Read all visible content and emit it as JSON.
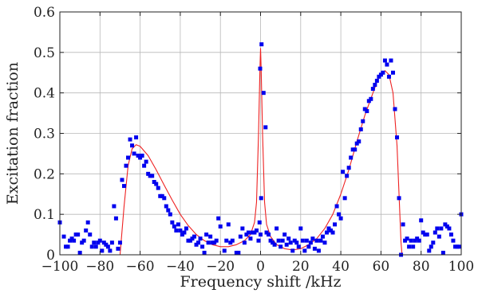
{
  "chart_data": {
    "type": "scatter",
    "xlabel": "Frequency shift /kHz",
    "ylabel": "Excitation fraction",
    "xlim": [
      -100,
      100
    ],
    "ylim": [
      0,
      0.6
    ],
    "xticks": [
      -100,
      -80,
      -60,
      -40,
      -20,
      0,
      20,
      40,
      60,
      80,
      100
    ],
    "yticks": [
      0,
      0.1,
      0.2,
      0.3,
      0.4,
      0.5,
      0.6
    ],
    "xtick_labels": [
      "−100",
      "−80",
      "−60",
      "−40",
      "−20",
      "0",
      "20",
      "40",
      "60",
      "80",
      "100"
    ],
    "ytick_labels": [
      "0",
      "0.1",
      "0.2",
      "0.3",
      "0.4",
      "0.5",
      "0.6"
    ],
    "grid": true,
    "series": [
      {
        "kind": "points",
        "color": "#0000ee",
        "marker": "square",
        "points": [
          [
            -100,
            0.08
          ],
          [
            -98,
            0.045
          ],
          [
            -97,
            0.02
          ],
          [
            -96,
            0.02
          ],
          [
            -95,
            0.035
          ],
          [
            -94,
            0.04
          ],
          [
            -93,
            0.035
          ],
          [
            -92,
            0.05
          ],
          [
            -91,
            0.05
          ],
          [
            -90,
            0.005
          ],
          [
            -89,
            0.03
          ],
          [
            -88,
            0.035
          ],
          [
            -87,
            0.06
          ],
          [
            -86,
            0.08
          ],
          [
            -85,
            0.05
          ],
          [
            -84,
            0.02
          ],
          [
            -83,
            0.03
          ],
          [
            -82,
            0.02
          ],
          [
            -81,
            0.03
          ],
          [
            -80,
            0.035
          ],
          [
            -79,
            0.01
          ],
          [
            -78,
            0.03
          ],
          [
            -77,
            0.025
          ],
          [
            -76,
            0.02
          ],
          [
            -75,
            0.01
          ],
          [
            -74,
            0.03
          ],
          [
            -73,
            0.12
          ],
          [
            -72,
            0.09
          ],
          [
            -71,
            0.015
          ],
          [
            -70,
            0.03
          ],
          [
            -69,
            0.185
          ],
          [
            -68,
            0.17
          ],
          [
            -67,
            0.22
          ],
          [
            -66,
            0.24
          ],
          [
            -65,
            0.285
          ],
          [
            -64,
            0.27
          ],
          [
            -63,
            0.25
          ],
          [
            -62,
            0.29
          ],
          [
            -61,
            0.245
          ],
          [
            -60,
            0.24
          ],
          [
            -59,
            0.245
          ],
          [
            -58,
            0.22
          ],
          [
            -57,
            0.23
          ],
          [
            -56,
            0.2
          ],
          [
            -55,
            0.195
          ],
          [
            -54,
            0.195
          ],
          [
            -53,
            0.18
          ],
          [
            -52,
            0.175
          ],
          [
            -51,
            0.165
          ],
          [
            -50,
            0.145
          ],
          [
            -49,
            0.145
          ],
          [
            -48,
            0.14
          ],
          [
            -47,
            0.12
          ],
          [
            -46,
            0.11
          ],
          [
            -45,
            0.1
          ],
          [
            -44,
            0.08
          ],
          [
            -43,
            0.07
          ],
          [
            -42,
            0.06
          ],
          [
            -41,
            0.075
          ],
          [
            -40,
            0.06
          ],
          [
            -39,
            0.05
          ],
          [
            -38,
            0.055
          ],
          [
            -37,
            0.065
          ],
          [
            -36,
            0.035
          ],
          [
            -35,
            0.035
          ],
          [
            -34,
            0.04
          ],
          [
            -33,
            0.045
          ],
          [
            -32,
            0.025
          ],
          [
            -31,
            0.03
          ],
          [
            -30,
            0.04
          ],
          [
            -29,
            0.02
          ],
          [
            -28,
            0.005
          ],
          [
            -27,
            0.05
          ],
          [
            -26,
            0.03
          ],
          [
            -25,
            0.045
          ],
          [
            -24,
            0.03
          ],
          [
            -23,
            0.03
          ],
          [
            -22,
            0.035
          ],
          [
            -21,
            0.09
          ],
          [
            -20,
            0.07
          ],
          [
            -18,
            0.01
          ],
          [
            -17,
            0.035
          ],
          [
            -16,
            0.075
          ],
          [
            -15,
            0.03
          ],
          [
            -14,
            0.035
          ],
          [
            -12,
            0.005
          ],
          [
            -11,
            0.005
          ],
          [
            -10,
            0.045
          ],
          [
            -9,
            0.065
          ],
          [
            -8,
            0.03
          ],
          [
            -7,
            0.05
          ],
          [
            -6,
            0.055
          ],
          [
            -5,
            0.04
          ],
          [
            -4,
            0.055
          ],
          [
            -3,
            0.055
          ],
          [
            -2,
            0.06
          ],
          [
            -1,
            0.035
          ],
          [
            0,
            0.05
          ],
          [
            -0.5,
            0.08
          ],
          [
            0.3,
            0.14
          ],
          [
            -0.2,
            0.46
          ],
          [
            0.5,
            0.52
          ],
          [
            1.5,
            0.4
          ],
          [
            2.5,
            0.315
          ],
          [
            3,
            0.055
          ],
          [
            4,
            0.05
          ],
          [
            5,
            0.035
          ],
          [
            6,
            0.03
          ],
          [
            7,
            0.025
          ],
          [
            8,
            0.065
          ],
          [
            9,
            0.035
          ],
          [
            10,
            0.02
          ],
          [
            11,
            0.035
          ],
          [
            12,
            0.05
          ],
          [
            13,
            0.025
          ],
          [
            14,
            0.04
          ],
          [
            15,
            0.03
          ],
          [
            16,
            0.01
          ],
          [
            17,
            0.035
          ],
          [
            18,
            0.03
          ],
          [
            19,
            0.02
          ],
          [
            20,
            0.065
          ],
          [
            21,
            0.035
          ],
          [
            22,
            0.01
          ],
          [
            23,
            0.035
          ],
          [
            24,
            0.02
          ],
          [
            25,
            0.03
          ],
          [
            26,
            0.04
          ],
          [
            27,
            0.015
          ],
          [
            28,
            0.035
          ],
          [
            29,
            0.01
          ],
          [
            30,
            0.035
          ],
          [
            31,
            0.045
          ],
          [
            32,
            0.03
          ],
          [
            33,
            0.055
          ],
          [
            34,
            0.065
          ],
          [
            35,
            0.06
          ],
          [
            36,
            0.055
          ],
          [
            37,
            0.075
          ],
          [
            38,
            0.12
          ],
          [
            39,
            0.1
          ],
          [
            40,
            0.09
          ],
          [
            41,
            0.205
          ],
          [
            42,
            0.14
          ],
          [
            43,
            0.195
          ],
          [
            44,
            0.215
          ],
          [
            45,
            0.24
          ],
          [
            46,
            0.26
          ],
          [
            47,
            0.26
          ],
          [
            48,
            0.275
          ],
          [
            49,
            0.28
          ],
          [
            50,
            0.31
          ],
          [
            51,
            0.33
          ],
          [
            52,
            0.36
          ],
          [
            53,
            0.355
          ],
          [
            54,
            0.38
          ],
          [
            55,
            0.385
          ],
          [
            56,
            0.41
          ],
          [
            57,
            0.42
          ],
          [
            58,
            0.43
          ],
          [
            59,
            0.44
          ],
          [
            60,
            0.445
          ],
          [
            61,
            0.45
          ],
          [
            62,
            0.48
          ],
          [
            63,
            0.47
          ],
          [
            64,
            0.44
          ],
          [
            65,
            0.48
          ],
          [
            66,
            0.45
          ],
          [
            67,
            0.36
          ],
          [
            68,
            0.29
          ],
          [
            69,
            0.14
          ],
          [
            70,
            0.0
          ],
          [
            71,
            0.075
          ],
          [
            72,
            0.035
          ],
          [
            73,
            0.04
          ],
          [
            74,
            0.02
          ],
          [
            75,
            0.035
          ],
          [
            76,
            0.02
          ],
          [
            77,
            0.035
          ],
          [
            78,
            0.04
          ],
          [
            79,
            0.035
          ],
          [
            80,
            0.085
          ],
          [
            81,
            0.055
          ],
          [
            82,
            0.05
          ],
          [
            83,
            0.05
          ],
          [
            84,
            0.01
          ],
          [
            85,
            0.02
          ],
          [
            86,
            0.03
          ],
          [
            87,
            0.055
          ],
          [
            88,
            0.065
          ],
          [
            89,
            0.045
          ],
          [
            90,
            0.065
          ],
          [
            91,
            0.005
          ],
          [
            92,
            0.075
          ],
          [
            93,
            0.07
          ],
          [
            94,
            0.065
          ],
          [
            95,
            0.05
          ],
          [
            96,
            0.035
          ],
          [
            97,
            0.02
          ],
          [
            98,
            0.02
          ],
          [
            99,
            0.02
          ],
          [
            100,
            0.1
          ]
        ]
      },
      {
        "kind": "line",
        "color": "#ee2222",
        "points": [
          [
            -100,
            0.0
          ],
          [
            -70,
            0.0
          ],
          [
            -68,
            0.12
          ],
          [
            -66,
            0.22
          ],
          [
            -64,
            0.262
          ],
          [
            -62,
            0.272
          ],
          [
            -60,
            0.268
          ],
          [
            -56,
            0.245
          ],
          [
            -52,
            0.21
          ],
          [
            -48,
            0.172
          ],
          [
            -44,
            0.135
          ],
          [
            -40,
            0.1
          ],
          [
            -36,
            0.072
          ],
          [
            -32,
            0.05
          ],
          [
            -28,
            0.035
          ],
          [
            -24,
            0.025
          ],
          [
            -20,
            0.02
          ],
          [
            -16,
            0.02
          ],
          [
            -12,
            0.025
          ],
          [
            -8,
            0.035
          ],
          [
            -5,
            0.05
          ],
          [
            -3,
            0.08
          ],
          [
            -2,
            0.13
          ],
          [
            -1,
            0.3
          ],
          [
            -0.3,
            0.46
          ],
          [
            0,
            0.51
          ],
          [
            0.3,
            0.46
          ],
          [
            1,
            0.3
          ],
          [
            2,
            0.13
          ],
          [
            3,
            0.075
          ],
          [
            5,
            0.045
          ],
          [
            8,
            0.025
          ],
          [
            12,
            0.015
          ],
          [
            16,
            0.012
          ],
          [
            20,
            0.015
          ],
          [
            24,
            0.025
          ],
          [
            28,
            0.04
          ],
          [
            32,
            0.065
          ],
          [
            36,
            0.1
          ],
          [
            40,
            0.15
          ],
          [
            44,
            0.21
          ],
          [
            48,
            0.28
          ],
          [
            52,
            0.345
          ],
          [
            56,
            0.4
          ],
          [
            59,
            0.44
          ],
          [
            62,
            0.455
          ],
          [
            64,
            0.445
          ],
          [
            66,
            0.4
          ],
          [
            68,
            0.27
          ],
          [
            69,
            0.15
          ],
          [
            70,
            0.03
          ],
          [
            70.5,
            0.0
          ],
          [
            100,
            0.0
          ]
        ]
      }
    ]
  }
}
